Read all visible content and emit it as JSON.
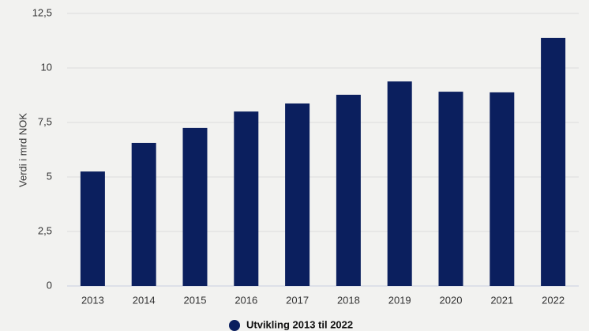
{
  "chart_data": {
    "type": "bar",
    "y_label": "Verdi i mrd NOK",
    "categories": [
      "2013",
      "2014",
      "2015",
      "2016",
      "2017",
      "2018",
      "2019",
      "2020",
      "2021",
      "2022"
    ],
    "series": [
      {
        "name": "Utvikling 2013 til 2022",
        "color": "#0b1f5e",
        "values": [
          5.25,
          6.56,
          7.25,
          8.0,
          8.37,
          8.77,
          9.38,
          8.91,
          8.88,
          11.38
        ]
      }
    ],
    "ylim": [
      0,
      12.5
    ],
    "yticks": [
      0,
      {
        "value": 2.5,
        "label": "2,5"
      },
      5,
      {
        "value": 7.5,
        "label": "7,5"
      },
      10,
      {
        "value": 12.5,
        "label": "12,5"
      }
    ],
    "grid": true
  }
}
